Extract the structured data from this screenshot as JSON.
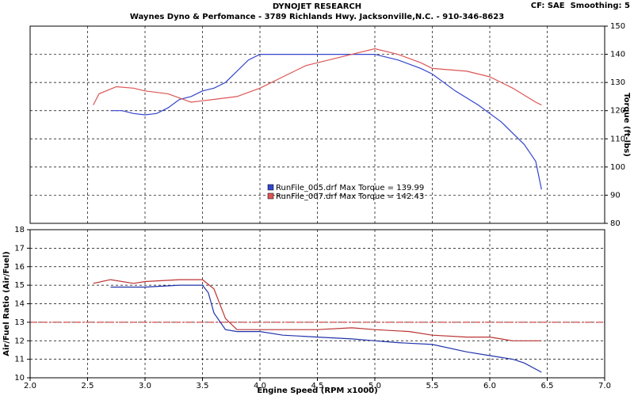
{
  "header": {
    "title": "DYNOJET RESEARCH",
    "subtitle": "Waynes Dyno & Perfomance - 3789 Richlands Hwy. Jacksonville,N.C. - 910-346-8623",
    "settings": "CF: SAE  Smoothing: 5"
  },
  "chart_data": [
    {
      "type": "line",
      "y_label": "Torque (ft-lbs)",
      "y_axis_side": "right",
      "grid": true,
      "xlim": [
        2,
        7
      ],
      "ylim": [
        80,
        150
      ],
      "yticks": [
        80,
        90,
        100,
        110,
        120,
        130,
        140,
        150
      ],
      "legend": [
        "RunFile_005.drf Max Torque = 139.99",
        "RunFile_007.drf Max Torque = 142.43"
      ],
      "series": [
        {
          "name": "RunFile_005.drf",
          "color": "#3344cc",
          "x": [
            2.7,
            2.8,
            2.9,
            3.0,
            3.1,
            3.2,
            3.3,
            3.4,
            3.5,
            3.6,
            3.7,
            3.8,
            3.9,
            4.0,
            4.2,
            4.5,
            4.8,
            5.0,
            5.2,
            5.4,
            5.5,
            5.7,
            5.9,
            6.1,
            6.3,
            6.4,
            6.45
          ],
          "values": [
            120,
            120,
            119,
            118.5,
            119,
            121,
            124,
            125,
            127,
            128,
            130,
            134,
            138,
            140,
            140,
            140,
            140,
            140,
            138,
            135,
            133,
            127,
            122,
            116,
            108,
            102,
            92
          ]
        },
        {
          "name": "RunFile_007.drf",
          "color": "#dd5555",
          "x": [
            2.55,
            2.6,
            2.75,
            2.9,
            3.0,
            3.2,
            3.4,
            3.6,
            3.8,
            4.0,
            4.2,
            4.4,
            4.6,
            4.8,
            5.0,
            5.2,
            5.4,
            5.5,
            5.8,
            6.0,
            6.2,
            6.4,
            6.45
          ],
          "values": [
            122,
            126,
            128.5,
            128,
            127,
            126,
            123,
            124,
            125,
            128,
            132,
            136,
            138,
            140,
            142,
            140,
            137,
            135,
            134,
            132,
            128,
            123,
            122
          ]
        }
      ]
    },
    {
      "type": "line",
      "y_label": "Air/Fuel Ratio (Air/Fuel)",
      "x_label": "Engine Speed (RPM x1000)",
      "y_axis_side": "left",
      "grid": true,
      "xlim": [
        2,
        7
      ],
      "ylim": [
        10,
        18
      ],
      "yticks": [
        10,
        11,
        12,
        13,
        14,
        15,
        16,
        17,
        18
      ],
      "xticks": [
        {
          "value": 2,
          "label": "2.0"
        },
        2.5,
        {
          "value": 3,
          "label": "3.0"
        },
        3.5,
        {
          "value": 4,
          "label": "4.0"
        },
        4.5,
        {
          "value": 5,
          "label": "5.0"
        },
        5.5,
        {
          "value": 6,
          "label": "6.0"
        },
        6.5,
        {
          "value": 7,
          "label": "7.0"
        }
      ],
      "reference_line": 13,
      "reference_color": "#cc2222",
      "series": [
        {
          "name": "RunFile_005.drf",
          "color": "#2233aa",
          "x": [
            2.7,
            3.0,
            3.3,
            3.5,
            3.55,
            3.6,
            3.7,
            3.8,
            4.0,
            4.2,
            4.5,
            4.8,
            5.0,
            5.2,
            5.5,
            5.8,
            6.0,
            6.2,
            6.3,
            6.45
          ],
          "values": [
            14.9,
            14.9,
            15.0,
            15.0,
            14.6,
            13.5,
            12.6,
            12.5,
            12.5,
            12.3,
            12.2,
            12.1,
            12.0,
            11.9,
            11.8,
            11.4,
            11.2,
            11.0,
            10.8,
            10.3
          ]
        },
        {
          "name": "RunFile_007.drf",
          "color": "#bb3333",
          "x": [
            2.55,
            2.7,
            2.9,
            3.0,
            3.3,
            3.5,
            3.6,
            3.7,
            3.8,
            4.0,
            4.3,
            4.5,
            4.8,
            5.0,
            5.3,
            5.5,
            5.8,
            6.0,
            6.2,
            6.4,
            6.45
          ],
          "values": [
            15.1,
            15.3,
            15.1,
            15.2,
            15.3,
            15.3,
            14.8,
            13.2,
            12.6,
            12.6,
            12.6,
            12.6,
            12.7,
            12.6,
            12.5,
            12.3,
            12.2,
            12.2,
            12.0,
            12.0,
            12.0
          ]
        }
      ]
    }
  ]
}
